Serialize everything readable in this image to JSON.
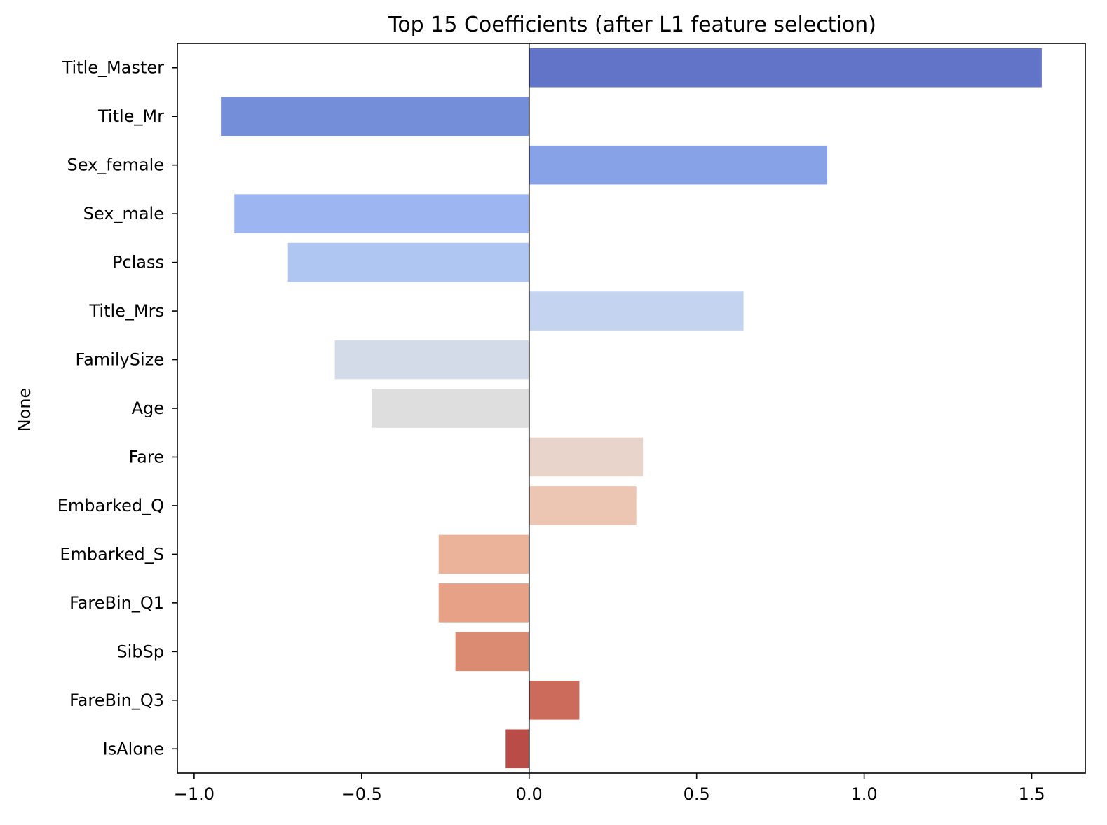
{
  "chart_data": {
    "type": "bar",
    "orientation": "horizontal",
    "title": "Top 15 Coefficients (after L1 feature selection)",
    "xlabel": "",
    "ylabel": "None",
    "xlim": [
      -1.05,
      1.66
    ],
    "xticks": [
      -1.0,
      -0.5,
      0.0,
      0.5,
      1.0,
      1.5
    ],
    "xtick_labels": [
      "−1.0",
      "−0.5",
      "0.0",
      "0.5",
      "1.0",
      "1.5"
    ],
    "grid": false,
    "categories": [
      "Title_Master",
      "Title_Mr",
      "Sex_female",
      "Sex_male",
      "Pclass",
      "Title_Mrs",
      "FamilySize",
      "Age",
      "Fare",
      "Embarked_Q",
      "Embarked_S",
      "FareBin_Q1",
      "SibSp",
      "FareBin_Q3",
      "IsAlone"
    ],
    "values": [
      1.53,
      -0.92,
      0.89,
      -0.88,
      -0.72,
      0.64,
      -0.58,
      -0.47,
      0.34,
      0.32,
      -0.27,
      -0.27,
      -0.22,
      0.15,
      -0.07
    ],
    "colors": [
      "#6174c8",
      "#748ed9",
      "#88a2e7",
      "#9db5f0",
      "#afc6f3",
      "#c3d3f0",
      "#d3dbe9",
      "#dedede",
      "#e8d4ca",
      "#ecc6b3",
      "#ebb49a",
      "#e6a187",
      "#dc8b73",
      "#cc6a5c",
      "#b94c47"
    ]
  }
}
